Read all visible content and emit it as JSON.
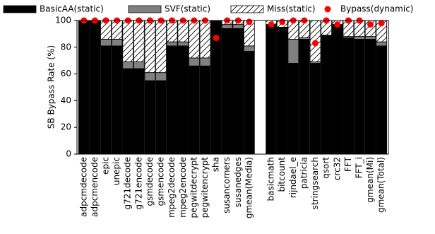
{
  "chart_data": {
    "type": "bar",
    "stacked": true,
    "y_label": "SB Bypass Rate (%)",
    "categories": [
      "adpcmdecode",
      "adpcmencode",
      "epic",
      "unepic",
      "g721decode",
      "g721encode",
      "gsmdecode",
      "gsmencode",
      "mpeg2decode",
      "mpeg2encode",
      "pegwitdecrypt",
      "pegwitencrypt",
      "sha",
      "susancorners",
      "susanedges",
      "gmean(Media)",
      null,
      "basicmath",
      "bitcount",
      "rijndael_e",
      "patricia",
      "stringsearch",
      "qsort",
      "crc32",
      "FFT",
      "FFT_i",
      "gmean(Mi)",
      "gmean(Total)"
    ],
    "series": [
      {
        "name": "BasicAA(static)",
        "color": "#000000",
        "values": [
          100,
          100,
          81,
          81,
          64,
          64,
          55,
          55,
          81,
          81,
          66,
          66,
          100,
          94,
          94,
          77,
          null,
          97,
          95,
          68,
          86,
          68,
          89,
          97,
          87,
          86,
          86,
          81
        ]
      },
      {
        "name": "SVF(static)",
        "color": "#808080",
        "values": [
          0,
          0,
          5,
          5,
          5,
          5,
          6,
          6,
          3,
          3,
          6,
          6,
          0,
          3,
          3,
          4,
          null,
          0,
          0,
          18,
          1,
          1,
          0,
          0,
          1,
          2,
          2,
          3
        ]
      },
      {
        "name": "Miss(static)",
        "color": "#ffffff",
        "hatch": true,
        "values": [
          0,
          0,
          14,
          14,
          31,
          31,
          39,
          39,
          16,
          16,
          28,
          28,
          0,
          3,
          3,
          19,
          null,
          3,
          5,
          14,
          13,
          31,
          11,
          3,
          12,
          12,
          12,
          16
        ]
      },
      {
        "name": "Bypass(dynamic)",
        "color": "#ff0000",
        "type": "scatter",
        "values": [
          100,
          100,
          100,
          100,
          100,
          100,
          100,
          100,
          100,
          100,
          100,
          100,
          87,
          100,
          100,
          99,
          null,
          97,
          99,
          100,
          100,
          83,
          100,
          97,
          100,
          100,
          97,
          98
        ]
      }
    ],
    "ylim": [
      0,
      100
    ],
    "yticks": [
      0,
      20,
      40,
      60,
      80,
      100
    ],
    "grid": false,
    "legend": "top"
  }
}
